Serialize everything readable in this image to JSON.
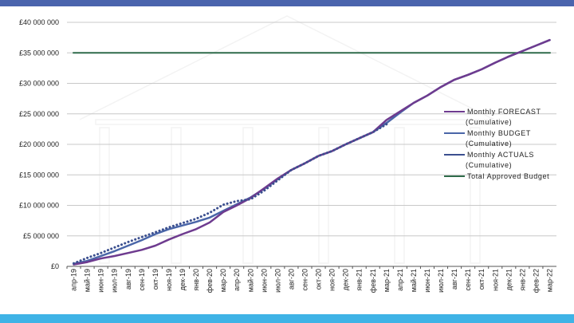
{
  "colors": {
    "top_bar": "#4a64ad",
    "bottom_bar": "#3fb3e6",
    "forecast": "#6e3b8f",
    "budget": "#4a66a8",
    "actuals": "#3b4f8f",
    "approved": "#2f6b4a",
    "grid": "#c8c8c8",
    "axis": "#555555"
  },
  "chart_data": {
    "type": "line",
    "title": "",
    "xlabel": "",
    "ylabel": "",
    "ylim": [
      0,
      40000000
    ],
    "y_ticks": [
      0,
      5000000,
      10000000,
      15000000,
      20000000,
      25000000,
      30000000,
      35000000,
      40000000
    ],
    "y_tick_labels": [
      "£0",
      "£5 000 000",
      "£10 000 000",
      "£15 000 000",
      "£20 000 000",
      "£25 000 000",
      "£30 000 000",
      "£35 000 000",
      "£40 000 000"
    ],
    "categories": [
      "апр-19",
      "май-19",
      "июн-19",
      "июл-19",
      "авг-19",
      "сен-19",
      "окт-19",
      "ноя-19",
      "дек-19",
      "янв-20",
      "фев-20",
      "мар-20",
      "апр-20",
      "май-20",
      "июн-20",
      "июл-20",
      "авг-20",
      "сен-20",
      "окт-20",
      "ноя-20",
      "дек-20",
      "янв-21",
      "фев-21",
      "мар-21",
      "апр-21",
      "май-21",
      "июн-21",
      "июл-21",
      "авг-21",
      "сен-21",
      "окт-21",
      "ноя-21",
      "дек-21",
      "янв-22",
      "фев-22",
      "мар-22"
    ],
    "grid": "horizontal",
    "legend_position": "right",
    "series": [
      {
        "name": "Monthly FORECAST (Cumulative)",
        "style": "solid",
        "values": [
          300000,
          700000,
          1300000,
          1700000,
          2200000,
          2700000,
          3400000,
          4400000,
          5300000,
          6100000,
          7200000,
          8900000,
          10000000,
          11200000,
          12800000,
          14400000,
          15800000,
          16900000,
          18100000,
          18900000,
          20000000,
          21000000,
          22000000,
          24000000,
          25400000,
          26800000,
          28000000,
          29400000,
          30600000,
          31400000,
          32300000,
          33400000,
          34400000,
          35300000,
          36200000,
          37100000
        ]
      },
      {
        "name": "Monthly BUDGET (Cumulative)",
        "style": "solid",
        "values": [
          400000,
          900000,
          1700000,
          2500000,
          3400000,
          4300000,
          5300000,
          6100000,
          6700000,
          7300000,
          8000000,
          9100000,
          10200000,
          11300000,
          12700000,
          14300000,
          15800000,
          16900000,
          18100000,
          18900000,
          20000000,
          21000000,
          22000000,
          23500000,
          25200000,
          26800000,
          28000000,
          29400000,
          30600000,
          31400000,
          32300000,
          33400000,
          34400000,
          35300000,
          36200000,
          37100000
        ]
      },
      {
        "name": "Monthly ACTUALS (Cumulative)",
        "style": "dotted",
        "values": [
          500000,
          1400000,
          2200000,
          3100000,
          4000000,
          4800000,
          5600000,
          6400000,
          7100000,
          7800000,
          8800000,
          10100000,
          10700000,
          11000000,
          12400000,
          14100000,
          15800000,
          16900000,
          18100000,
          18900000,
          20000000,
          21000000,
          22000000,
          23300000,
          null,
          null,
          null,
          null,
          null,
          null,
          null,
          null,
          null,
          null,
          null,
          null
        ]
      },
      {
        "name": "Total Approved Budget",
        "style": "solid",
        "values": [
          35000000,
          35000000,
          35000000,
          35000000,
          35000000,
          35000000,
          35000000,
          35000000,
          35000000,
          35000000,
          35000000,
          35000000,
          35000000,
          35000000,
          35000000,
          35000000,
          35000000,
          35000000,
          35000000,
          35000000,
          35000000,
          35000000,
          35000000,
          35000000,
          35000000,
          35000000,
          35000000,
          35000000,
          35000000,
          35000000,
          35000000,
          35000000,
          35000000,
          35000000,
          35000000,
          35000000
        ]
      }
    ],
    "legend": {
      "entries": [
        {
          "lines": [
            "Monthly FORECAST",
            "(Cumulative)"
          ],
          "color_key": "forecast"
        },
        {
          "lines": [
            "Monthly BUDGET",
            "(Cumulative)"
          ],
          "color_key": "budget"
        },
        {
          "lines": [
            "Monthly ACTUALS",
            "(Cumulative)"
          ],
          "color_key": "actuals"
        },
        {
          "lines": [
            "Total Approved Budget"
          ],
          "color_key": "approved"
        }
      ]
    }
  }
}
